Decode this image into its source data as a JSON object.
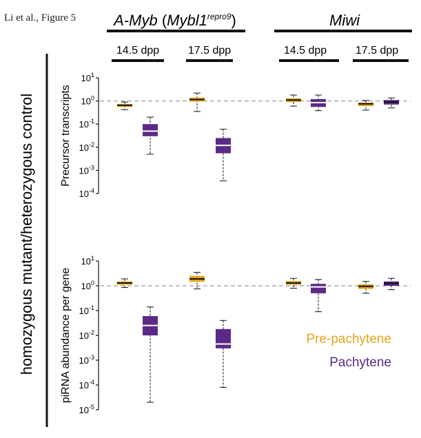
{
  "figure": {
    "label": "Li et al., Figure 5",
    "group_left_prefix": "A-Myb",
    "group_left_paren_open": " (",
    "group_left_gene": "Mybl1",
    "group_left_sup": "repro9",
    "group_left_paren_close": ")",
    "group_right": "Miwi",
    "y_outer_label": "homozygous mutant/heterozygous control",
    "legend": [
      {
        "label": "Pre-pachytene",
        "color": "#E5A419"
      },
      {
        "label": "Pachytene",
        "color": "#5B2A86"
      }
    ],
    "colors": {
      "pre_pachytene": "#E5A419",
      "pachytene": "#5B2A86",
      "reference_line": "#9e9e9e"
    }
  },
  "chart_data": [
    {
      "type": "box",
      "ylabel": "Precursor transcripts",
      "yscale": "log",
      "ylim": [
        0.0001,
        10
      ],
      "yticks": [
        {
          "base": "10",
          "exp": "1"
        },
        {
          "base": "10",
          "exp": "0"
        },
        {
          "base": "10",
          "exp": "-1"
        },
        {
          "base": "10",
          "exp": "-2"
        },
        {
          "base": "10",
          "exp": "-3"
        },
        {
          "base": "10",
          "exp": "-4"
        }
      ],
      "reference_line": 1,
      "categories": [
        "14.5 dpp",
        "17.5 dpp",
        "14.5 dpp",
        "17.5 dpp"
      ],
      "category_groups": [
        "A-Myb",
        "A-Myb",
        "Miwi",
        "Miwi"
      ],
      "series": [
        {
          "name": "Pre-pachytene",
          "boxes": [
            {
              "min": 0.42,
              "q1": 0.55,
              "median": 0.65,
              "q3": 0.75,
              "max": 0.9
            },
            {
              "min": 0.35,
              "q1": 0.95,
              "median": 1.15,
              "q3": 1.4,
              "max": 2.2
            },
            {
              "min": 0.6,
              "q1": 0.9,
              "median": 1.1,
              "q3": 1.3,
              "max": 1.8
            },
            {
              "min": 0.4,
              "q1": 0.6,
              "median": 0.75,
              "q3": 0.85,
              "max": 1.05
            }
          ]
        },
        {
          "name": "Pachytene",
          "boxes": [
            {
              "min": 0.005,
              "q1": 0.03,
              "median": 0.05,
              "q3": 0.1,
              "max": 0.2
            },
            {
              "min": 0.00035,
              "q1": 0.0055,
              "median": 0.012,
              "q3": 0.025,
              "max": 0.06
            },
            {
              "min": 0.38,
              "q1": 0.55,
              "median": 0.85,
              "q3": 1.2,
              "max": 1.8
            },
            {
              "min": 0.5,
              "q1": 0.7,
              "median": 0.9,
              "q3": 1.1,
              "max": 1.35
            }
          ]
        }
      ]
    },
    {
      "type": "box",
      "ylabel": "piRNA abundance per gene",
      "yscale": "log",
      "ylim": [
        1e-05,
        10
      ],
      "yticks": [
        {
          "base": "10",
          "exp": "1"
        },
        {
          "base": "10",
          "exp": "0"
        },
        {
          "base": "10",
          "exp": "-1"
        },
        {
          "base": "10",
          "exp": "-2"
        },
        {
          "base": "10",
          "exp": "-3"
        },
        {
          "base": "10",
          "exp": "-4"
        },
        {
          "base": "10",
          "exp": "-5"
        }
      ],
      "reference_line": 1,
      "categories": [
        "14.5 dpp",
        "17.5 dpp",
        "14.5 dpp",
        "17.5 dpp"
      ],
      "category_groups": [
        "A-Myb",
        "A-Myb",
        "Miwi",
        "Miwi"
      ],
      "series": [
        {
          "name": "Pre-pachytene",
          "boxes": [
            {
              "min": 0.85,
              "q1": 1.1,
              "median": 1.3,
              "q3": 1.5,
              "max": 1.9
            },
            {
              "min": 0.75,
              "q1": 1.45,
              "median": 1.9,
              "q3": 2.5,
              "max": 3.5
            },
            {
              "min": 0.8,
              "q1": 1.1,
              "median": 1.3,
              "q3": 1.55,
              "max": 2.0
            },
            {
              "min": 0.5,
              "q1": 0.75,
              "median": 0.95,
              "q3": 1.15,
              "max": 1.5
            }
          ]
        },
        {
          "name": "Pachytene",
          "boxes": [
            {
              "min": 2e-05,
              "q1": 0.01,
              "median": 0.025,
              "q3": 0.06,
              "max": 0.14
            },
            {
              "min": 8e-05,
              "q1": 0.003,
              "median": 0.0045,
              "q3": 0.018,
              "max": 0.04
            },
            {
              "min": 0.09,
              "q1": 0.5,
              "median": 0.9,
              "q3": 1.2,
              "max": 1.8
            },
            {
              "min": 0.7,
              "q1": 1.0,
              "median": 1.25,
              "q3": 1.5,
              "max": 2.0
            }
          ]
        }
      ]
    }
  ]
}
